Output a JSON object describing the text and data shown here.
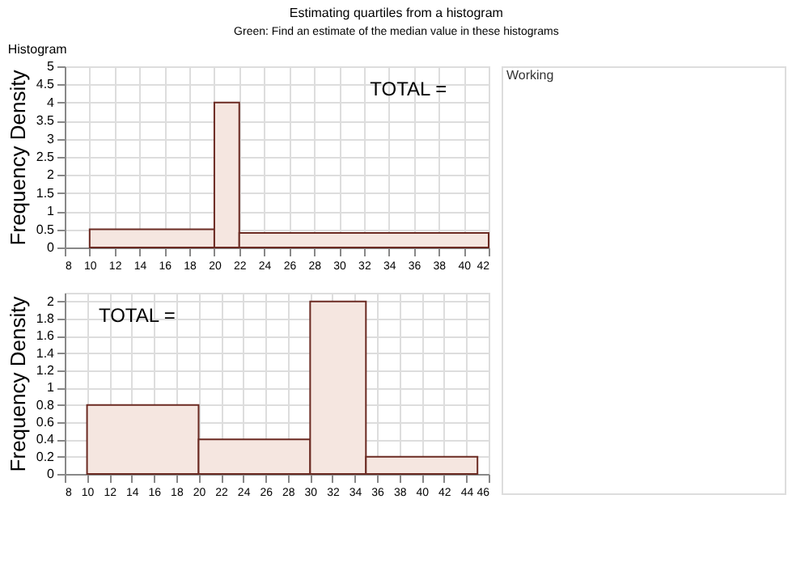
{
  "chart_data": [
    {
      "type": "histogram",
      "title": "Estimating quartiles from a histogram",
      "subtitle": "Green: Find an estimate of the median value in these histograms",
      "ylabel": "Frequency Density",
      "bins": [
        10,
        20,
        22,
        42
      ],
      "values": [
        0.5,
        4,
        0.4
      ],
      "color": "#f5e6e0",
      "xlim": [
        8,
        42
      ],
      "xticks": [
        8,
        10,
        12,
        14,
        16,
        18,
        20,
        22,
        24,
        26,
        28,
        30,
        32,
        34,
        36,
        38,
        40,
        42
      ],
      "ylim": [
        0,
        5
      ],
      "yticks": [
        0,
        0.5,
        1,
        1.5,
        2,
        2.5,
        3,
        3.5,
        4,
        4.5,
        5
      ],
      "grid": true,
      "annotations": [
        "Histogram",
        "TOTAL =",
        "Working"
      ]
    },
    {
      "type": "histogram",
      "ylabel": "Frequency Density",
      "bins": [
        10,
        20,
        30,
        35,
        45
      ],
      "values": [
        0.8,
        0.4,
        2,
        0.2
      ],
      "color": "#f5e6e0",
      "xlim": [
        8,
        46
      ],
      "xticks": [
        8,
        10,
        12,
        14,
        16,
        18,
        20,
        22,
        24,
        26,
        28,
        30,
        32,
        34,
        36,
        38,
        40,
        42,
        44,
        46
      ],
      "ylim": [
        0,
        2.1
      ],
      "yticks": [
        0,
        0.2,
        0.4,
        0.6,
        0.8,
        1,
        1.2,
        1.4,
        1.6,
        1.8,
        2
      ],
      "grid": true,
      "annotations": [
        "TOTAL ="
      ]
    }
  ]
}
